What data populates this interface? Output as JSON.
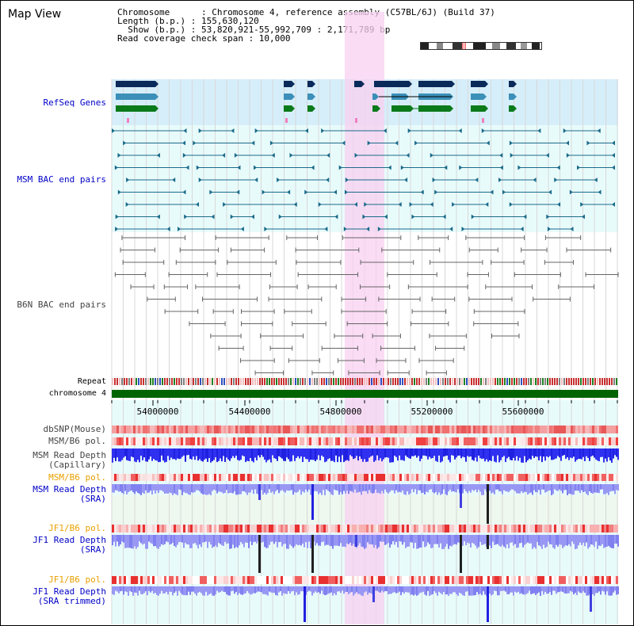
{
  "title": "Map View",
  "info": {
    "line1": "Chromosome      : Chromosome 4, reference assembly (C57BL/6J) (Build 37)",
    "line2": "Length (b.p.) : 155,630,120",
    "line3": "  Show (b.p.) : 53,820,921-55,992,709 : 2,171,789 bp",
    "line4": "Read coverage check span : 10,000"
  },
  "tracks": {
    "refseq": "RefSeq Genes",
    "msm_bac": "MSM BAC end pairs",
    "b6n_bac": "B6N BAC end pairs",
    "repeat": "Repeat",
    "chromosome": "chromosome 4",
    "dbsnp": "dbSNP(Mouse)",
    "msm_b6_pol_1": "MSM/B6 pol.",
    "msm_depth_cap": "MSM Read Depth\n(Capillary)",
    "msm_b6_pol_2": "MSM/B6 pol.",
    "msm_depth_sra": "MSM Read Depth\n(SRA)",
    "jf1_b6_pol_1": "JF1/B6 pol.",
    "jf1_depth_sra": "JF1 Read Depth\n(SRA)",
    "jf1_b6_pol_2": "JF1/B6 pol.",
    "jf1_depth_trim": "JF1 Read Depth\n(SRA trimmed)"
  },
  "axis": {
    "ticks": [
      "54000000",
      "54400000",
      "54800000",
      "55200000",
      "55600000"
    ]
  },
  "colors": {
    "refseq_bg": "#d6eefa",
    "msm_bg": "#e8fbfb",
    "highlight": "#f8d0f0",
    "chromosome": "#006400",
    "gene_dark": "#0a2a5a",
    "gene_mid": "#3b8fb8",
    "gene_green": "#0a7a1a",
    "msm_line": "#1a6a8a",
    "b6n_line": "#666666",
    "depth_blue": "#2020e0",
    "depth_light": "#8080f0",
    "pol_red": "#e03030"
  }
}
